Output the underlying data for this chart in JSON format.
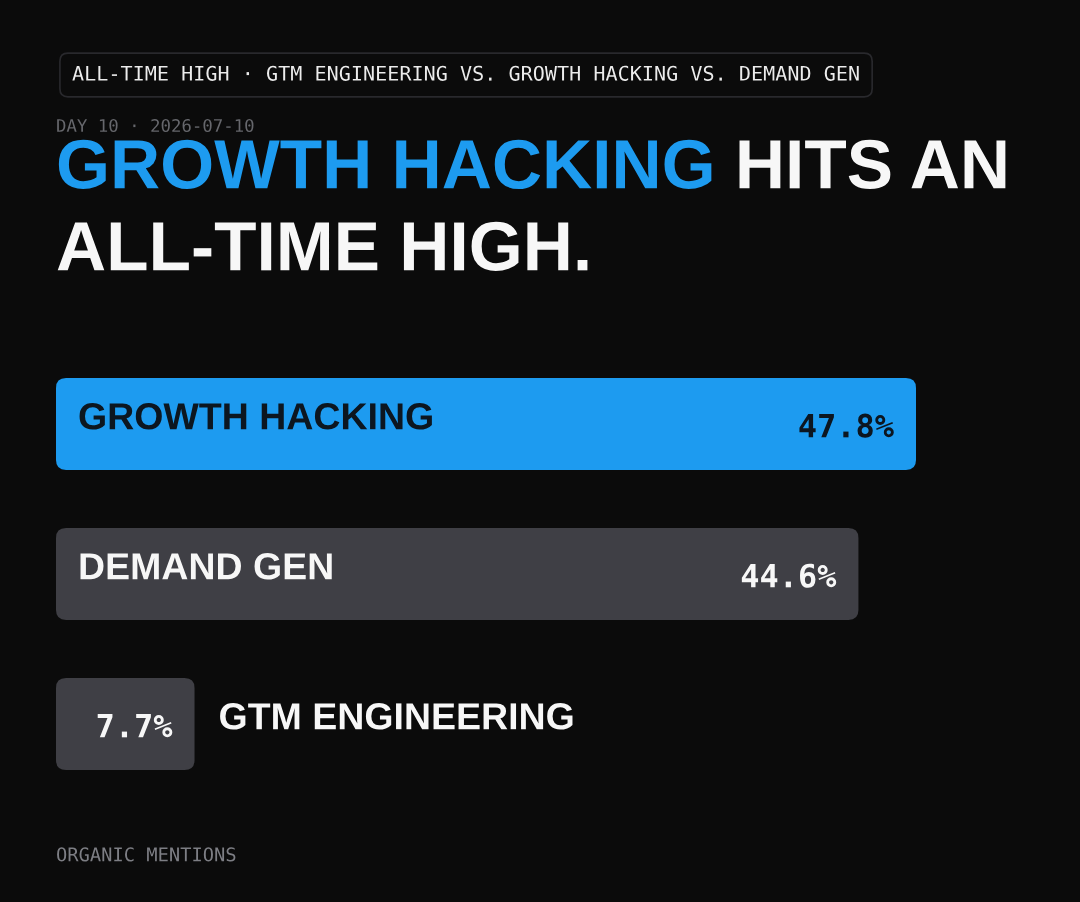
{
  "chart_data": {
    "type": "bar",
    "orientation": "horizontal",
    "title": "GROWTH HACKING HITS AN ALL-TIME HIGH.",
    "categories": [
      "GROWTH HACKING",
      "DEMAND GEN",
      "GTM ENGINEERING"
    ],
    "values": [
      47.8,
      44.6,
      7.7
    ],
    "colors": [
      "#1d9bf0",
      "#3f3f45",
      "#3f3f45"
    ],
    "value_labels": [
      "47.8%",
      "44.6%",
      "7.7%"
    ],
    "annotations": [
      "ALL-TIME HIGH · GTM ENGINEERING VS. GROWTH HACKING VS. DEMAND GEN",
      "DAY 10 · 2026-07-10",
      "ORGANIC MENTIONS"
    ]
  }
}
